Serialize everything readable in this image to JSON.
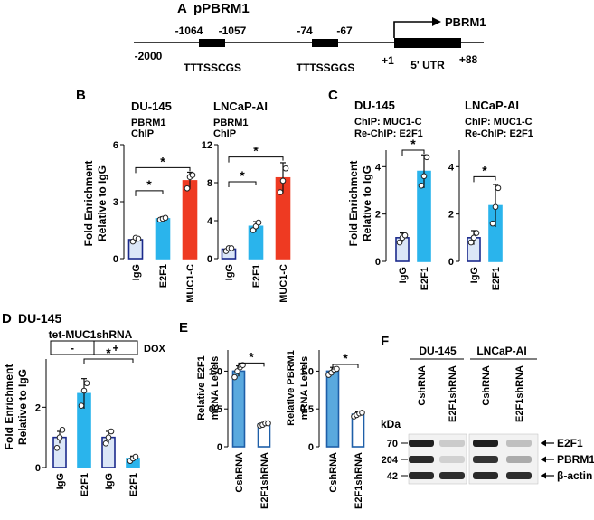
{
  "colors": {
    "igg_fill": "#dbe6f7",
    "igg_stroke": "#1b2a8c",
    "e2f1_fill": "#2ab4ec",
    "mucc_fill": "#ee3a22",
    "e_bar_fill": "#5aa9de",
    "e_bar_white": "#ffffff",
    "e_bar_stroke": "#1e5fa8",
    "dot_stroke": "#222222",
    "axis": "#000000"
  },
  "panel_a": {
    "letter": "A",
    "title": "pPBRM1",
    "gene_label": "PBRM1",
    "utr_label": "5' UTR",
    "start_label": "-2000",
    "plus1": "+1",
    "plus88": "+88",
    "site1": {
      "left": "-1064",
      "right": "-1057",
      "seq": "TTTSSCGS"
    },
    "site2": {
      "left": "-74",
      "right": "-67",
      "seq": "TTTSSGGS"
    }
  },
  "panel_b": {
    "letter": "B",
    "ylabel_line1": "Fold Enrichment",
    "ylabel_line2": "Relative to IgG",
    "star": "*"
  },
  "panel_c": {
    "letter": "C",
    "ylabel_line1": "Fold Enrichment",
    "ylabel_line2": "Relative to IgG",
    "star": "*"
  },
  "panel_d": {
    "letter": "D",
    "cell_line": "DU-145",
    "construct": "tet-MUC1shRNA",
    "dox_minus": "-",
    "dox_plus": "+",
    "dox_label": "DOX",
    "ylabel_line1": "Fold Enrichment",
    "ylabel_line2": "Relative to IgG",
    "star": "*"
  },
  "panel_e": {
    "letter": "E",
    "star": "*"
  },
  "panel_f": {
    "letter": "F",
    "groups": [
      "DU-145",
      "LNCaP-AI"
    ],
    "lanes": [
      "CshRNA",
      "E2F1shRNA",
      "CshRNA",
      "E2F1shRNA"
    ],
    "kda_label": "kDa",
    "rows": [
      {
        "kda": "70",
        "protein": "E2F1",
        "intensity": [
          0.95,
          0.15,
          0.95,
          0.2
        ]
      },
      {
        "kda": "204",
        "protein": "PBRM1",
        "intensity": [
          0.9,
          0.12,
          0.85,
          0.3
        ]
      },
      {
        "kda": "42",
        "protein": "β-actin",
        "intensity": [
          0.9,
          0.88,
          0.9,
          0.88
        ]
      }
    ]
  },
  "chart_data": [
    {
      "id": "B1",
      "type": "bar",
      "title": "DU-145",
      "subtitle": [
        "PBRM1",
        "ChIP"
      ],
      "categories": [
        "IgG",
        "E2F1",
        "MUC1-C"
      ],
      "values": [
        1.0,
        2.1,
        4.1
      ],
      "errors": [
        0.15,
        0.1,
        0.45
      ],
      "points": [
        [
          0.9,
          1.1,
          1.05
        ],
        [
          2.05,
          2.1,
          2.15
        ],
        [
          3.7,
          4.3,
          4.4
        ]
      ],
      "fills": [
        "igg",
        "e2f1",
        "mucc"
      ],
      "ylim": [
        0,
        6
      ],
      "yticks": [
        0,
        3,
        6
      ],
      "ylabel": "Fold Enrichment Relative to IgG",
      "sig": [
        [
          0,
          1
        ],
        [
          0,
          2
        ]
      ]
    },
    {
      "id": "B2",
      "type": "bar",
      "title": "LNCaP-AI",
      "subtitle": [
        "PBRM1",
        "ChIP"
      ],
      "categories": [
        "IgG",
        "E2F1",
        "MUC1-C"
      ],
      "values": [
        1.0,
        3.4,
        8.5
      ],
      "errors": [
        0.2,
        0.5,
        1.6
      ],
      "points": [
        [
          0.8,
          1.1,
          1.1
        ],
        [
          3.0,
          3.4,
          3.8
        ],
        [
          7.0,
          8.2,
          9.5
        ]
      ],
      "fills": [
        "igg",
        "e2f1",
        "mucc"
      ],
      "ylim": [
        0,
        12
      ],
      "yticks": [
        0,
        4,
        8,
        12
      ],
      "sig": [
        [
          0,
          1
        ],
        [
          0,
          2
        ]
      ]
    },
    {
      "id": "C1",
      "type": "bar",
      "title": "DU-145",
      "subtitle": [
        "ChIP: MUC1-C",
        "Re-ChIP: E2F1"
      ],
      "categories": [
        "IgG",
        "E2F1"
      ],
      "values": [
        1.0,
        3.8
      ],
      "errors": [
        0.2,
        0.7
      ],
      "points": [
        [
          0.8,
          1.0,
          1.1
        ],
        [
          3.2,
          3.6,
          4.4
        ]
      ],
      "fills": [
        "igg",
        "e2f1"
      ],
      "ylim": [
        0,
        4.7
      ],
      "yticks": [
        0,
        2,
        4
      ],
      "ylabel": "Fold Enrichment Relative to IgG",
      "sig": [
        [
          0,
          1
        ]
      ]
    },
    {
      "id": "C2",
      "type": "bar",
      "title": "LNCaP-AI",
      "subtitle": [
        "ChIP: MUC1-C",
        "Re-ChIP: E2F1"
      ],
      "categories": [
        "IgG",
        "E2F1"
      ],
      "values": [
        1.0,
        2.35
      ],
      "errors": [
        0.3,
        0.9
      ],
      "points": [
        [
          0.8,
          1.0,
          1.2
        ],
        [
          1.6,
          2.3,
          3.1
        ]
      ],
      "fills": [
        "igg",
        "e2f1"
      ],
      "ylim": [
        0,
        4.7
      ],
      "yticks": [
        0,
        2,
        4
      ],
      "sig": [
        [
          0,
          1
        ]
      ]
    },
    {
      "id": "D",
      "type": "bar",
      "title": "DU-145",
      "categories": [
        "IgG",
        "E2F1",
        "IgG",
        "E2F1"
      ],
      "values": [
        1.0,
        2.45,
        1.0,
        0.3
      ],
      "errors": [
        0.2,
        0.5,
        0.2,
        0.08
      ],
      "points": [
        [
          0.65,
          1.0,
          1.25
        ],
        [
          2.05,
          2.55,
          2.8
        ],
        [
          0.8,
          1.0,
          1.2
        ],
        [
          0.22,
          0.3,
          0.36
        ]
      ],
      "fills": [
        "igg",
        "e2f1",
        "igg",
        "e2f1"
      ],
      "ylim": [
        0,
        3.6
      ],
      "yticks": [
        0,
        2
      ],
      "ylabel": "Fold Enrichment Relative to IgG",
      "sig": [
        [
          1,
          3
        ]
      ]
    },
    {
      "id": "E1",
      "type": "bar",
      "categories": [
        "CshRNA",
        "E2F1shRNA"
      ],
      "values": [
        1.0,
        0.3
      ],
      "errors": [
        0.07,
        0.02
      ],
      "points": [
        [
          0.92,
          1.0,
          1.05,
          1.08
        ],
        [
          0.28,
          0.29,
          0.31,
          0.31
        ]
      ],
      "fills": [
        "e_blue",
        "e_white"
      ],
      "ylim": [
        0,
        1.28
      ],
      "yticks": [
        0,
        0.5,
        1.0
      ],
      "ylabel": "Relative E2F1 mRNA Levels",
      "sig": [
        [
          0,
          1
        ]
      ]
    },
    {
      "id": "E2",
      "type": "bar",
      "categories": [
        "CshRNA",
        "E2F1shRNA"
      ],
      "values": [
        1.0,
        0.43
      ],
      "errors": [
        0.05,
        0.03
      ],
      "points": [
        [
          0.95,
          0.98,
          1.02,
          1.03
        ],
        [
          0.4,
          0.42,
          0.44,
          0.45
        ]
      ],
      "fills": [
        "e_blue",
        "e_white"
      ],
      "ylim": [
        0,
        1.28
      ],
      "yticks": [
        0,
        0.5,
        1.0
      ],
      "ylabel": "Relative PBRM1 mRNA Levels",
      "sig": [
        [
          0,
          1
        ]
      ]
    }
  ]
}
